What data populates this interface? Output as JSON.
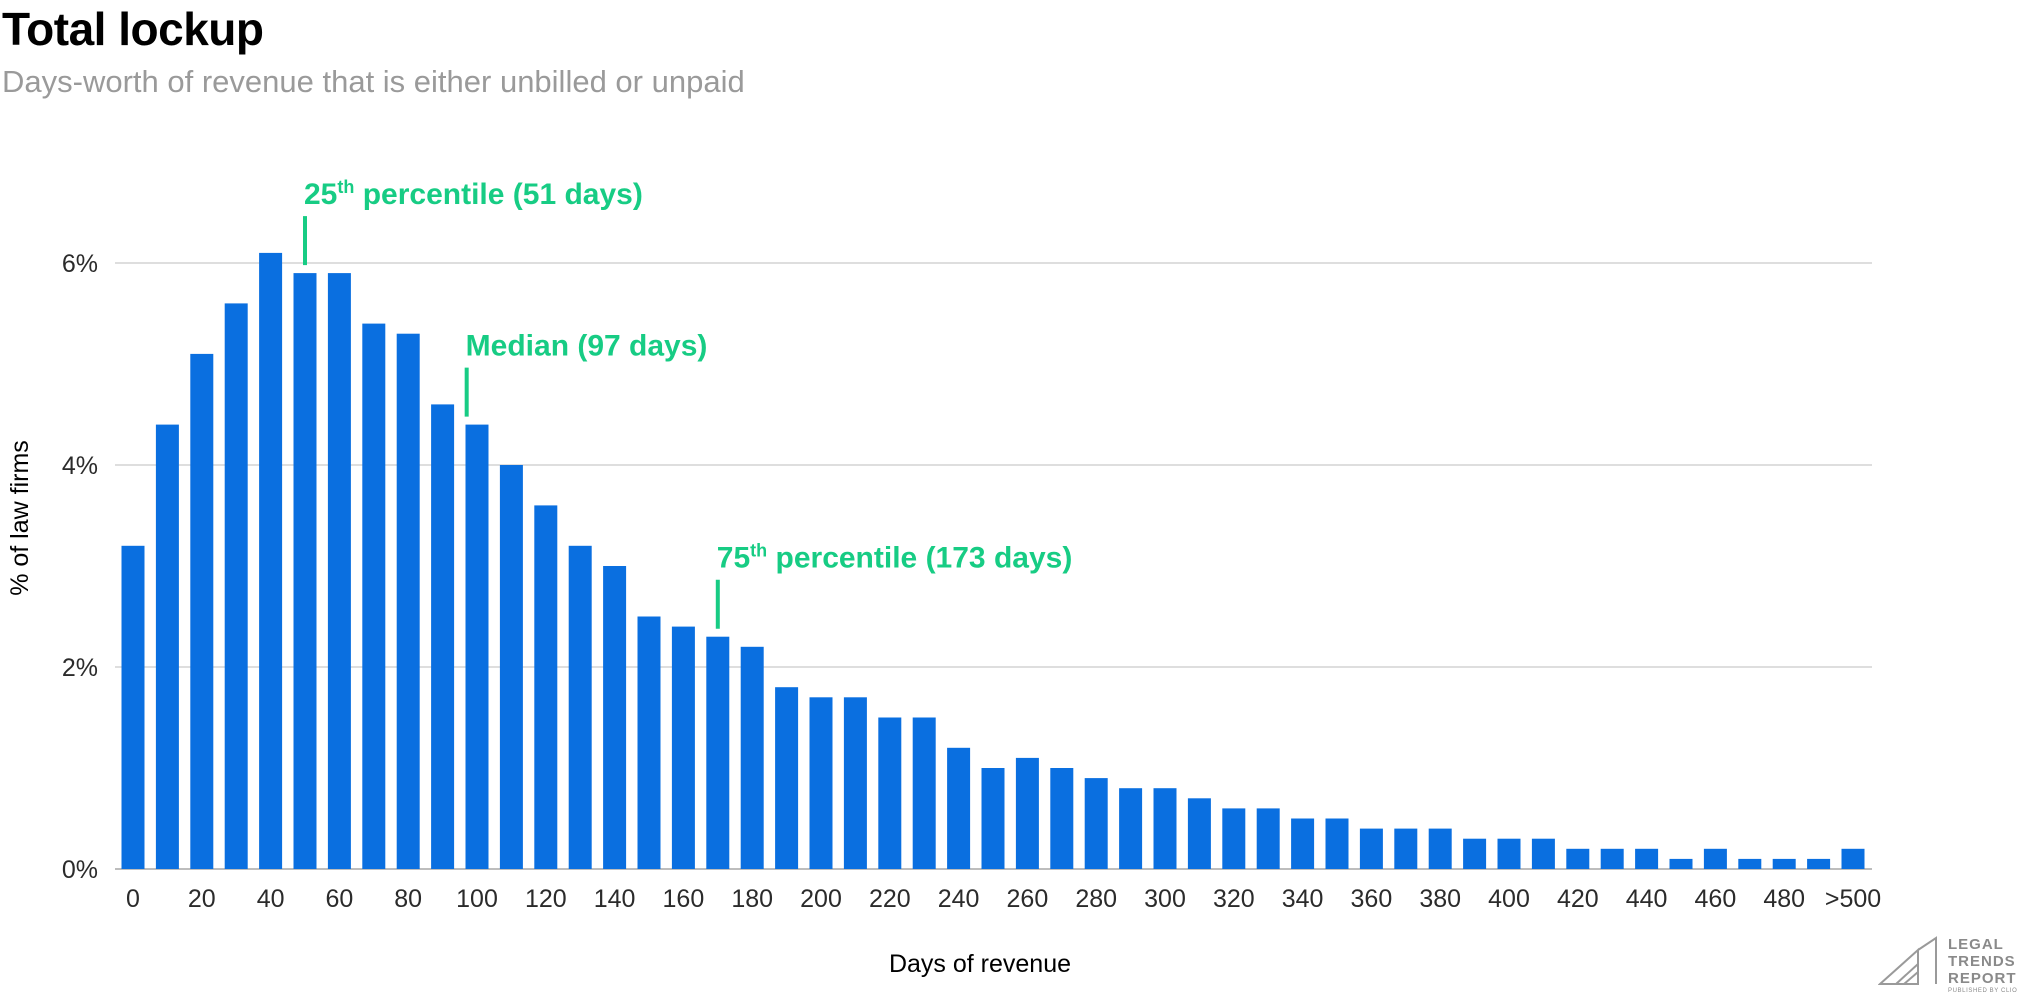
{
  "chart_data": {
    "type": "bar",
    "title": "Total lockup",
    "subtitle": "Days-worth of revenue that is either unbilled or unpaid",
    "xlabel": "Days of revenue",
    "ylabel": "% of law firms",
    "x": [
      0,
      10,
      20,
      30,
      40,
      50,
      60,
      70,
      80,
      90,
      100,
      110,
      120,
      130,
      140,
      150,
      160,
      170,
      180,
      190,
      200,
      210,
      220,
      230,
      240,
      250,
      260,
      270,
      280,
      290,
      300,
      310,
      320,
      330,
      340,
      350,
      360,
      370,
      380,
      390,
      400,
      410,
      420,
      430,
      440,
      450,
      460,
      470,
      480,
      490,
      500
    ],
    "values": [
      3.2,
      4.4,
      5.1,
      5.6,
      6.1,
      5.9,
      5.9,
      5.4,
      5.3,
      4.6,
      4.4,
      4.0,
      3.6,
      3.2,
      3.0,
      2.5,
      2.4,
      2.3,
      2.2,
      1.8,
      1.7,
      1.7,
      1.5,
      1.5,
      1.2,
      1.0,
      1.1,
      1.0,
      0.9,
      0.8,
      0.8,
      0.7,
      0.6,
      0.6,
      0.5,
      0.5,
      0.4,
      0.4,
      0.4,
      0.3,
      0.3,
      0.3,
      0.2,
      0.2,
      0.2,
      0.1,
      0.2,
      0.1,
      0.1,
      0.1,
      0.2
    ],
    "x_tick_values": [
      0,
      20,
      40,
      60,
      80,
      100,
      120,
      140,
      160,
      180,
      200,
      220,
      240,
      260,
      280,
      300,
      320,
      340,
      360,
      380,
      400,
      420,
      440,
      460,
      480,
      500
    ],
    "x_tick_labels": [
      "0",
      "20",
      "40",
      "60",
      "80",
      "100",
      "120",
      "140",
      "160",
      "180",
      "200",
      "220",
      "240",
      "260",
      "280",
      "300",
      "320",
      "340",
      "360",
      "380",
      "400",
      "420",
      "440",
      "460",
      "480",
      ">500"
    ],
    "y_tick_values": [
      0,
      2,
      4,
      6
    ],
    "y_tick_labels": [
      "0%",
      "2%",
      "4%",
      "6%"
    ],
    "ylim": [
      0,
      6.6
    ],
    "grid": true,
    "colors": {
      "bar": "#0a6fe0",
      "annotation": "#17cc84",
      "grid": "#d4d4d4",
      "baseline": "#bdbdbd"
    },
    "annotations": [
      {
        "x": 50,
        "y": 5.9,
        "pre": "25",
        "sup": "th",
        "post": " percentile (51 days)"
      },
      {
        "x": 97,
        "y": 4.4,
        "pre": "Median (97 days)",
        "sup": "",
        "post": ""
      },
      {
        "x": 170,
        "y": 2.3,
        "pre": "75",
        "sup": "th",
        "post": " percentile (173 days)"
      }
    ]
  },
  "logo": {
    "line1": "LEGAL",
    "line2": "TRENDS",
    "line3": "REPORT",
    "line4": "PUBLISHED BY CLIO"
  }
}
